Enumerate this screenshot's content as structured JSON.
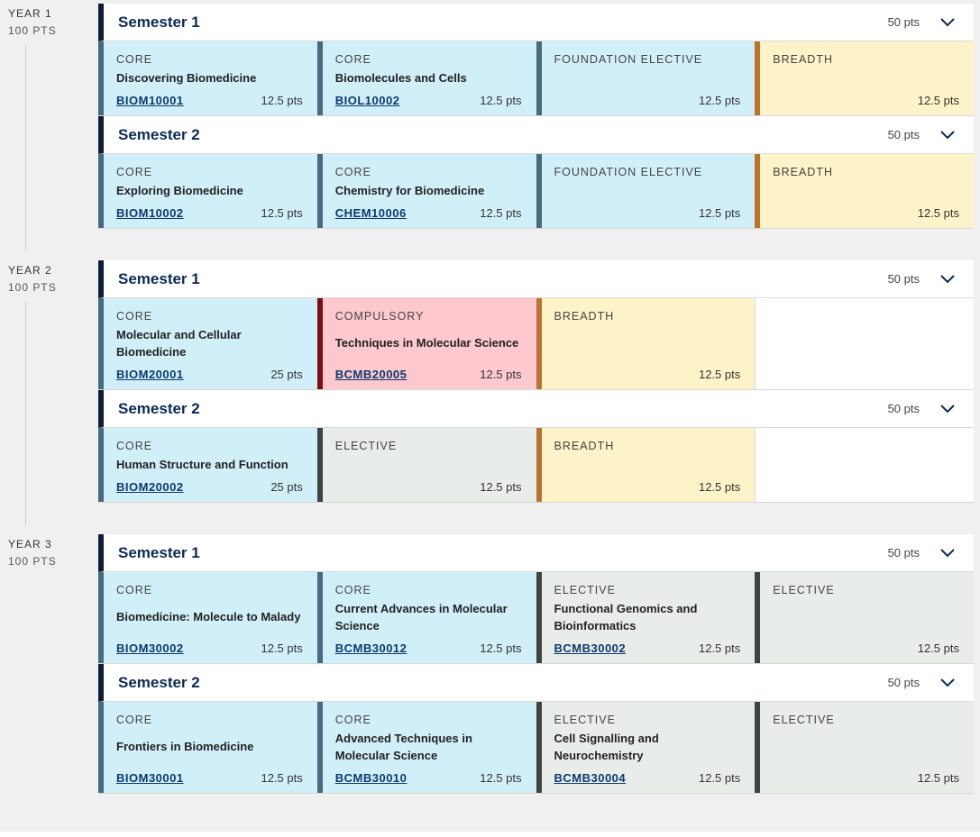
{
  "years": [
    {
      "label": "YEAR 1",
      "points": "100 PTS",
      "semesters": [
        {
          "title": "Semester 1",
          "points": "50 pts",
          "subjects": [
            {
              "type": "CORE",
              "name": "Discovering Biomedicine",
              "code": "BIOM10001",
              "points": "12.5 pts"
            },
            {
              "type": "CORE",
              "name": "Biomolecules and Cells",
              "code": "BIOL10002",
              "points": "12.5 pts"
            },
            {
              "type": "FOUNDATION ELECTIVE",
              "name": "",
              "code": "",
              "points": "12.5 pts"
            },
            {
              "type": "BREADTH",
              "name": "",
              "code": "",
              "points": "12.5 pts"
            }
          ]
        },
        {
          "title": "Semester 2",
          "points": "50 pts",
          "subjects": [
            {
              "type": "CORE",
              "name": "Exploring Biomedicine",
              "code": "BIOM10002",
              "points": "12.5 pts"
            },
            {
              "type": "CORE",
              "name": "Chemistry for Biomedicine",
              "code": "CHEM10006",
              "points": "12.5 pts"
            },
            {
              "type": "FOUNDATION ELECTIVE",
              "name": "",
              "code": "",
              "points": "12.5 pts"
            },
            {
              "type": "BREADTH",
              "name": "",
              "code": "",
              "points": "12.5 pts"
            }
          ]
        }
      ]
    },
    {
      "label": "YEAR 2",
      "points": "100 PTS",
      "semesters": [
        {
          "title": "Semester 1",
          "points": "50 pts",
          "subjects": [
            {
              "type": "CORE",
              "name": "Molecular and Cellular Biomedicine",
              "code": "BIOM20001",
              "points": "25 pts"
            },
            {
              "type": "COMPULSORY",
              "name": "Techniques in Molecular Science",
              "code": "BCMB20005",
              "points": "12.5 pts"
            },
            {
              "type": "BREADTH",
              "name": "",
              "code": "",
              "points": "12.5 pts"
            }
          ]
        },
        {
          "title": "Semester 2",
          "points": "50 pts",
          "subjects": [
            {
              "type": "CORE",
              "name": "Human Structure and Function",
              "code": "BIOM20002",
              "points": "25 pts"
            },
            {
              "type": "ELECTIVE",
              "name": "",
              "code": "",
              "points": "12.5 pts"
            },
            {
              "type": "BREADTH",
              "name": "",
              "code": "",
              "points": "12.5 pts"
            }
          ]
        }
      ]
    },
    {
      "label": "YEAR 3",
      "points": "100 PTS",
      "semesters": [
        {
          "title": "Semester 1",
          "points": "50 pts",
          "subjects": [
            {
              "type": "CORE",
              "name": "Biomedicine: Molecule to Malady",
              "code": "BIOM30002",
              "points": "12.5 pts"
            },
            {
              "type": "CORE",
              "name": "Current Advances in Molecular Science",
              "code": "BCMB30012",
              "points": "12.5 pts"
            },
            {
              "type": "ELECTIVE",
              "name": "Functional Genomics and Bioinformatics",
              "code": "BCMB30002",
              "points": "12.5 pts"
            },
            {
              "type": "ELECTIVE",
              "name": "",
              "code": "",
              "points": "12.5 pts"
            }
          ]
        },
        {
          "title": "Semester 2",
          "points": "50 pts",
          "subjects": [
            {
              "type": "CORE",
              "name": "Frontiers in Biomedicine",
              "code": "BIOM30001",
              "points": "12.5 pts"
            },
            {
              "type": "CORE",
              "name": "Advanced Techniques in Molecular Science",
              "code": "BCMB30010",
              "points": "12.5 pts"
            },
            {
              "type": "ELECTIVE",
              "name": "Cell Signalling and Neurochemistry",
              "code": "BCMB30004",
              "points": "12.5 pts"
            },
            {
              "type": "ELECTIVE",
              "name": "",
              "code": "",
              "points": "12.5 pts"
            }
          ]
        }
      ]
    }
  ],
  "icons": {
    "expand": "chevron-down-icon"
  },
  "colors": {
    "core": "#d1eff8",
    "breadth": "#fdf3c8",
    "elective": "#e9ede9",
    "compulsory": "#fdc8ce",
    "header_accent": "#0c1d3a"
  }
}
